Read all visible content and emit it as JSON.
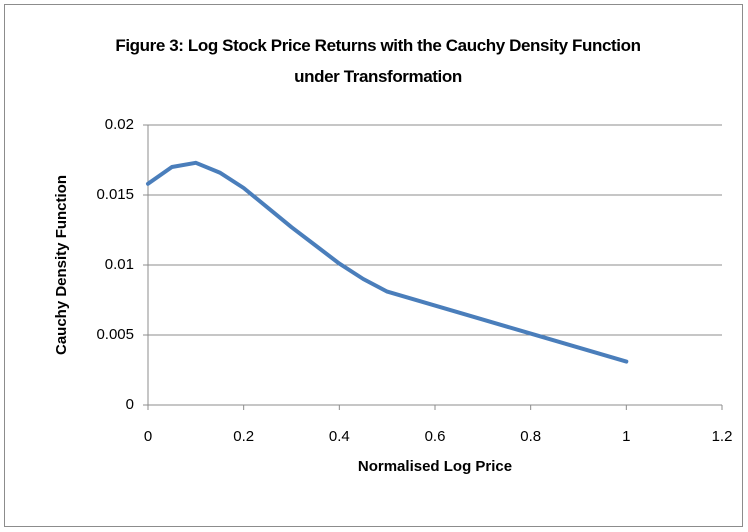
{
  "chart_data": {
    "type": "line",
    "title": "Figure 3: Log Stock Price Returns with the Cauchy Density Function under Transformation",
    "x_label": "Normalised Log Price",
    "y_label": "Cauchy Density Function",
    "x": [
      0,
      0.05,
      0.1,
      0.15,
      0.2,
      0.25,
      0.3,
      0.35,
      0.4,
      0.45,
      0.5,
      0.6,
      0.7,
      0.8,
      0.9,
      1.0
    ],
    "series": [
      {
        "color": "#4a7ebb",
        "values": [
          0.0158,
          0.017,
          0.0173,
          0.0166,
          0.0155,
          0.0141,
          0.0127,
          0.0114,
          0.0101,
          0.009,
          0.0081,
          0.0071,
          0.0061,
          0.0051,
          0.0041,
          0.0031
        ]
      }
    ],
    "xlim": [
      0,
      1.2
    ],
    "xticks": [
      0,
      0.2,
      0.4,
      0.6,
      0.8,
      1,
      1.2
    ],
    "ylim": [
      0,
      0.02
    ],
    "yticks": [
      0,
      0.005,
      0.01,
      0.015,
      0.02
    ],
    "grid": true
  }
}
